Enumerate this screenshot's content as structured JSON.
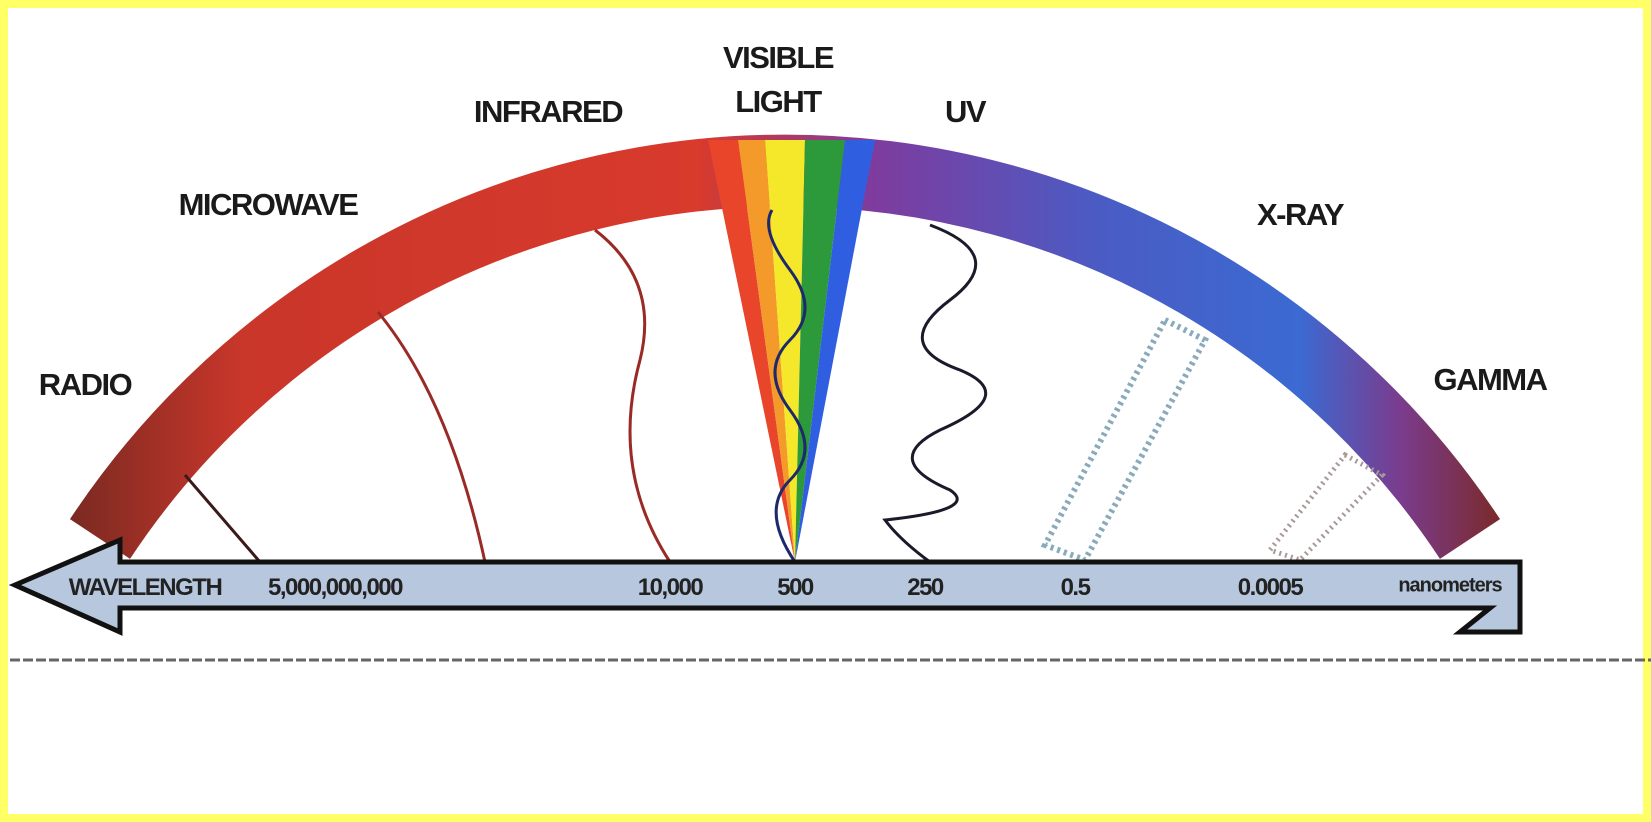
{
  "bands": [
    {
      "label": "RADIO"
    },
    {
      "label": "MICROWAVE"
    },
    {
      "label": "INFRARED"
    },
    {
      "label": "VISIBLE LIGHT"
    },
    {
      "label": "UV"
    },
    {
      "label": "X-RAY"
    },
    {
      "label": "GAMMA"
    }
  ],
  "axis": {
    "title": "WAVELENGTH",
    "unit": "nanometers",
    "labels": [
      "5,000,000,000",
      "10,000",
      "500",
      "250",
      "0.5",
      "0.0005"
    ]
  }
}
